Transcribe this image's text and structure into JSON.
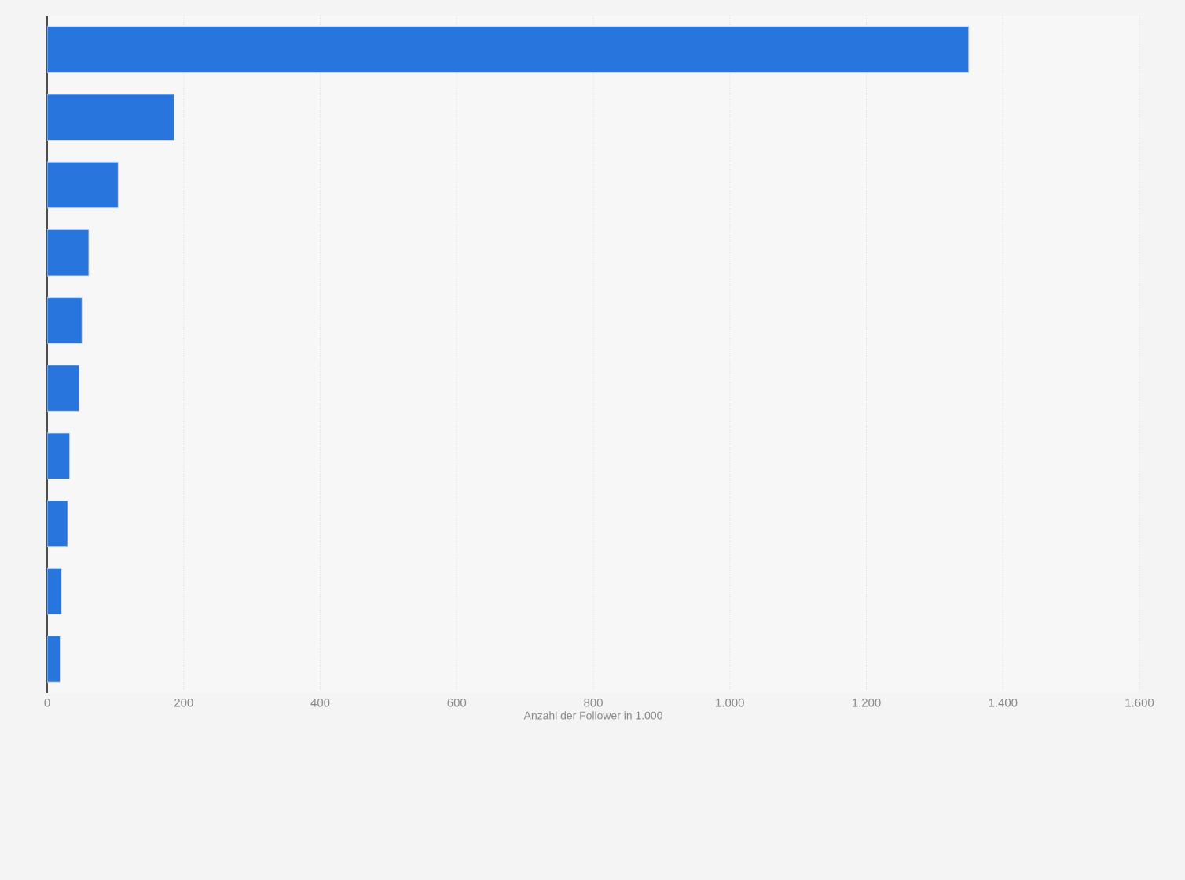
{
  "chart_data": {
    "type": "bar",
    "orientation": "horizontal",
    "xlabel": "Anzahl der Follower in 1.000",
    "categories": [
      null,
      null,
      null,
      null,
      null,
      null,
      null,
      null,
      null,
      null
    ],
    "values": [
      1350,
      186,
      104,
      61,
      51,
      47,
      33,
      30,
      21,
      19
    ],
    "color": "#2876dd",
    "xlim": [
      0,
      1600
    ],
    "xticks": [
      0,
      200,
      400,
      600,
      800,
      {
        "value": 1000,
        "label": "1.000"
      },
      {
        "value": 1200,
        "label": "1.200"
      },
      {
        "value": 1400,
        "label": "1.400"
      },
      {
        "value": 1600,
        "label": "1.600"
      }
    ],
    "grid": "x"
  }
}
